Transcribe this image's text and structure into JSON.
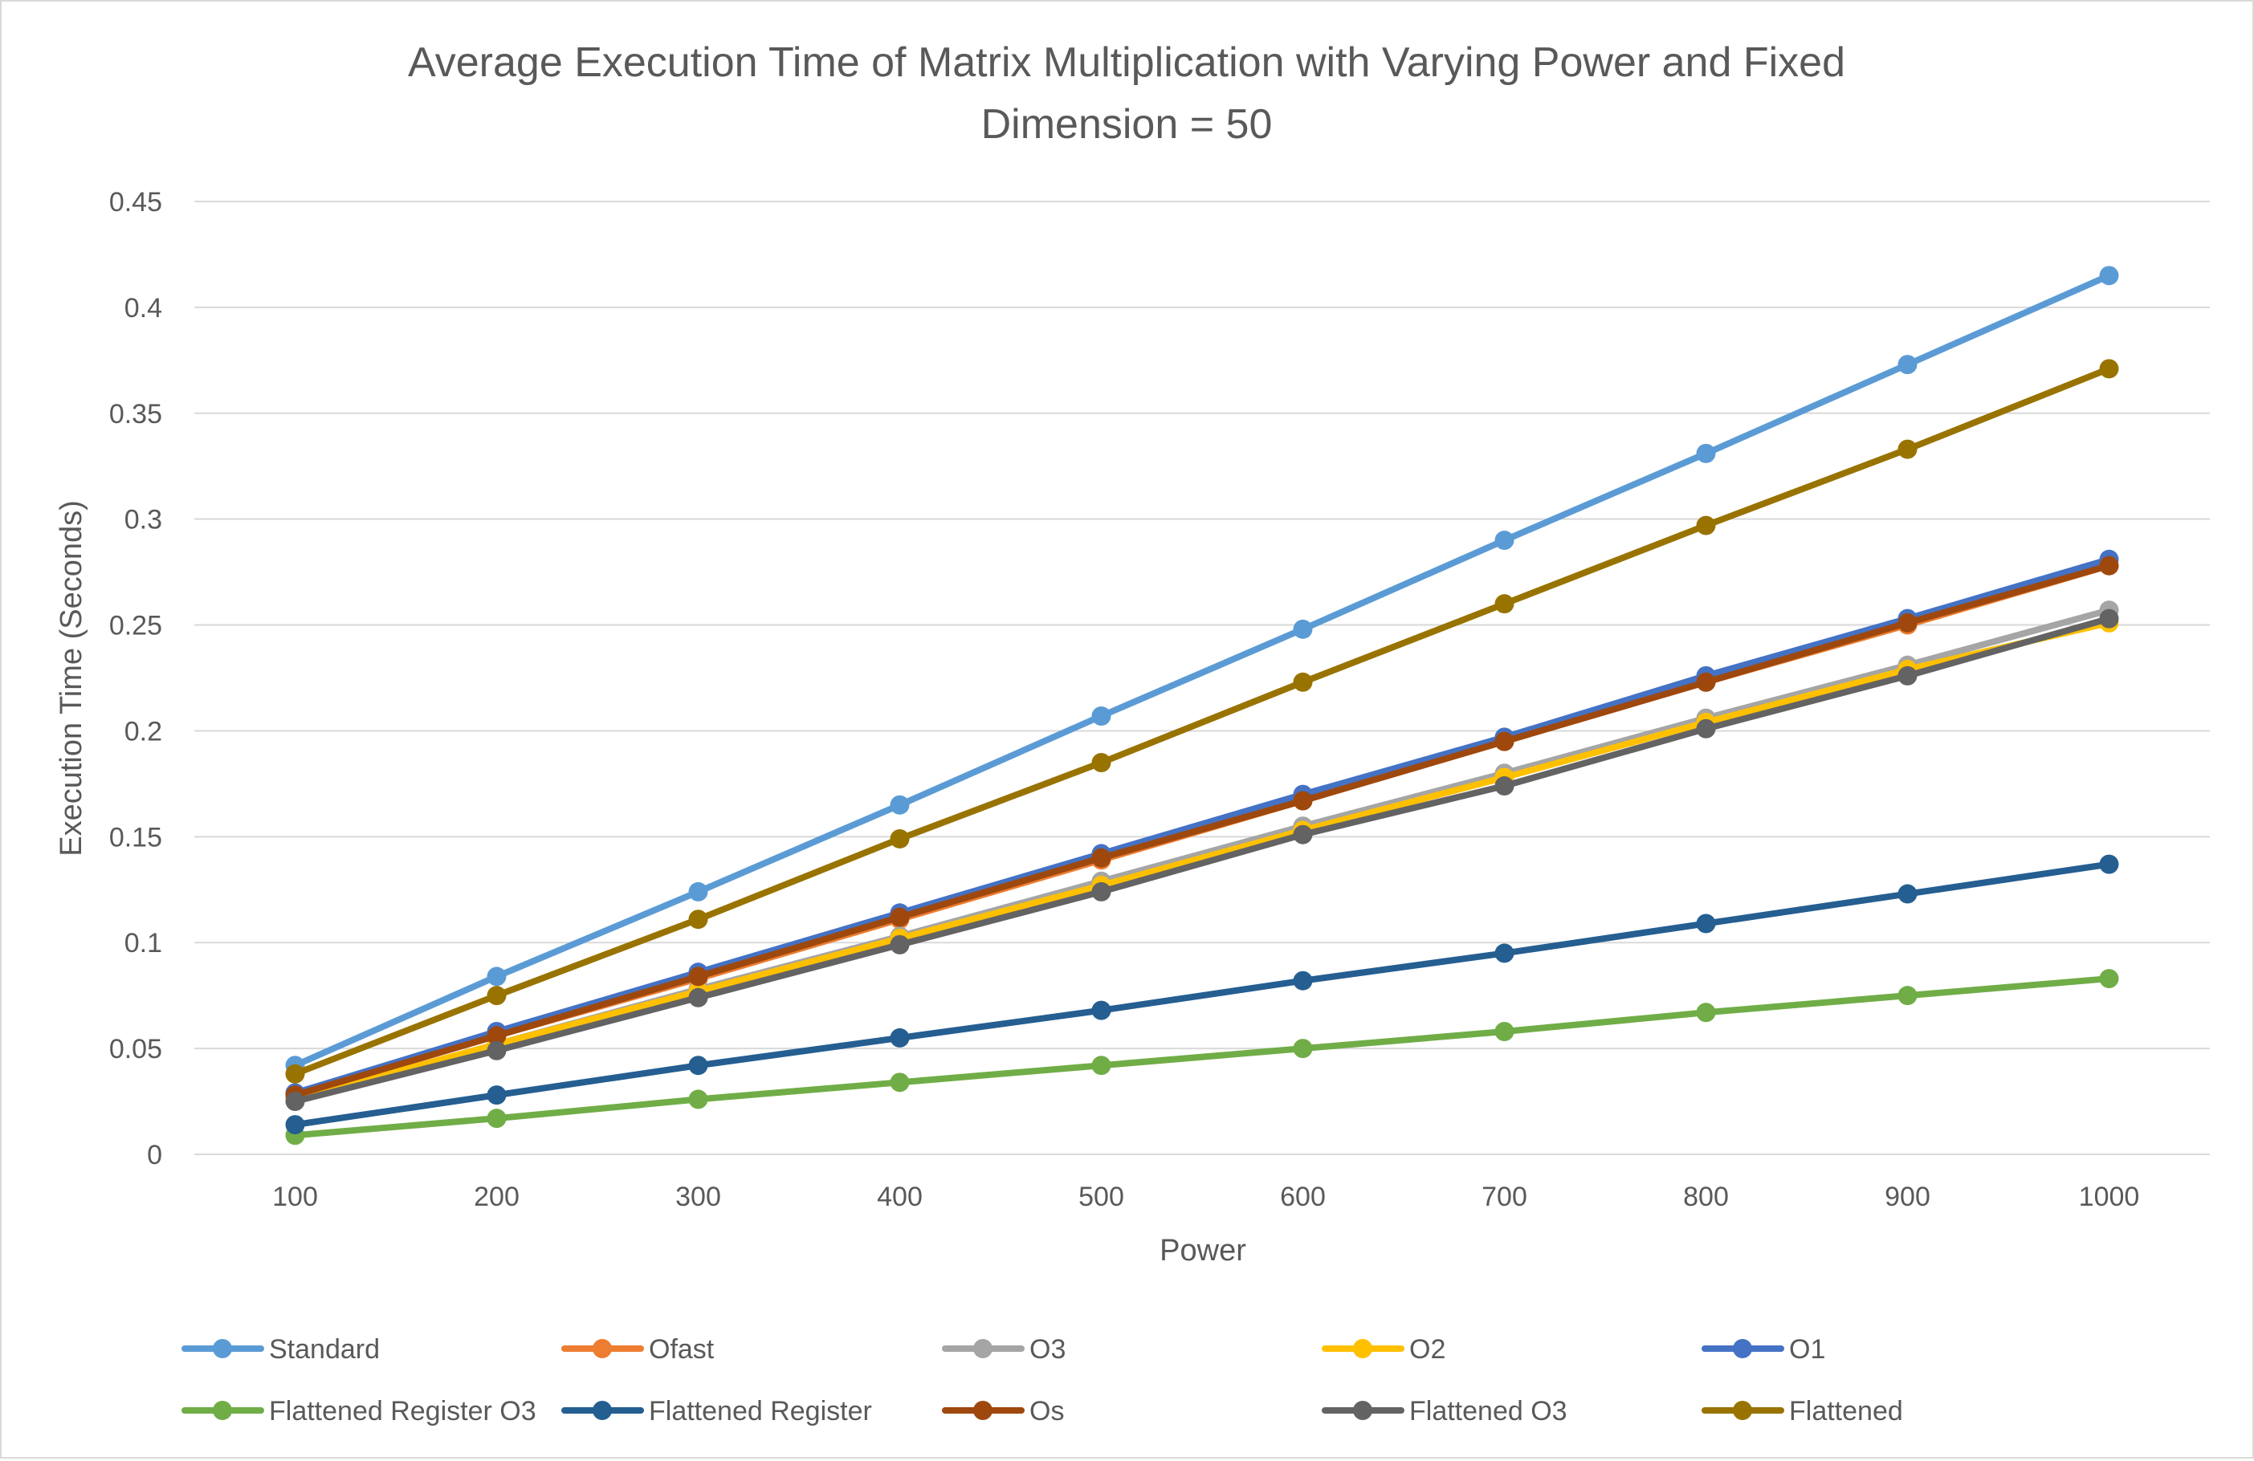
{
  "chart_data": {
    "type": "line",
    "title": "Average Execution Time of Matrix Multiplication with Varying Power and Fixed Dimension = 50",
    "title_lines": [
      "Average Execution Time of Matrix Multiplication with Varying Power and Fixed",
      "Dimension = 50"
    ],
    "xlabel": "Power",
    "ylabel": "Execution Time (Seconds)",
    "x": [
      100,
      200,
      300,
      400,
      500,
      600,
      700,
      800,
      900,
      1000
    ],
    "x_tick_labels": [
      "100",
      "200",
      "300",
      "400",
      "500",
      "600",
      "700",
      "800",
      "900",
      "1000"
    ],
    "y_ticks": [
      0,
      0.05,
      0.1,
      0.15,
      0.2,
      0.25,
      0.3,
      0.35,
      0.4,
      0.45
    ],
    "y_tick_labels": [
      "0",
      "0.05",
      "0.1",
      "0.15",
      "0.2",
      "0.25",
      "0.3",
      "0.35",
      "0.4",
      "0.45"
    ],
    "ylim": [
      0,
      0.45
    ],
    "grid": "horizontal",
    "legend_position": "bottom",
    "series": [
      {
        "name": "Standard",
        "color": "#5b9bd5",
        "values": [
          0.042,
          0.084,
          0.124,
          0.165,
          0.207,
          0.248,
          0.29,
          0.331,
          0.373,
          0.415
        ]
      },
      {
        "name": "Ofast",
        "color": "#ed7d31",
        "values": [
          0.028,
          0.056,
          0.083,
          0.111,
          0.139,
          0.167,
          0.195,
          0.223,
          0.25,
          0.278
        ]
      },
      {
        "name": "O3",
        "color": "#a5a5a5",
        "values": [
          0.026,
          0.052,
          0.078,
          0.103,
          0.129,
          0.155,
          0.18,
          0.206,
          0.231,
          0.257
        ]
      },
      {
        "name": "O2",
        "color": "#ffc000",
        "values": [
          0.026,
          0.052,
          0.077,
          0.102,
          0.127,
          0.153,
          0.178,
          0.204,
          0.229,
          0.251
        ]
      },
      {
        "name": "O1",
        "color": "#4472c4",
        "values": [
          0.029,
          0.058,
          0.086,
          0.114,
          0.142,
          0.17,
          0.197,
          0.226,
          0.253,
          0.281
        ]
      },
      {
        "name": "Flattened Register O3",
        "color": "#70ad47",
        "values": [
          0.009,
          0.017,
          0.026,
          0.034,
          0.042,
          0.05,
          0.058,
          0.067,
          0.075,
          0.083
        ]
      },
      {
        "name": "Flattened Register",
        "color": "#255e91",
        "values": [
          0.014,
          0.028,
          0.042,
          0.055,
          0.068,
          0.082,
          0.095,
          0.109,
          0.123,
          0.137
        ]
      },
      {
        "name": "Os",
        "color": "#9e480e",
        "values": [
          0.028,
          0.056,
          0.084,
          0.112,
          0.14,
          0.167,
          0.195,
          0.223,
          0.251,
          0.278
        ]
      },
      {
        "name": "Flattened O3",
        "color": "#636363",
        "values": [
          0.025,
          0.049,
          0.074,
          0.099,
          0.124,
          0.151,
          0.174,
          0.201,
          0.226,
          0.253
        ]
      },
      {
        "name": "Flattened",
        "color": "#997300",
        "values": [
          0.038,
          0.075,
          0.111,
          0.149,
          0.185,
          0.223,
          0.26,
          0.297,
          0.333,
          0.371
        ]
      }
    ]
  }
}
